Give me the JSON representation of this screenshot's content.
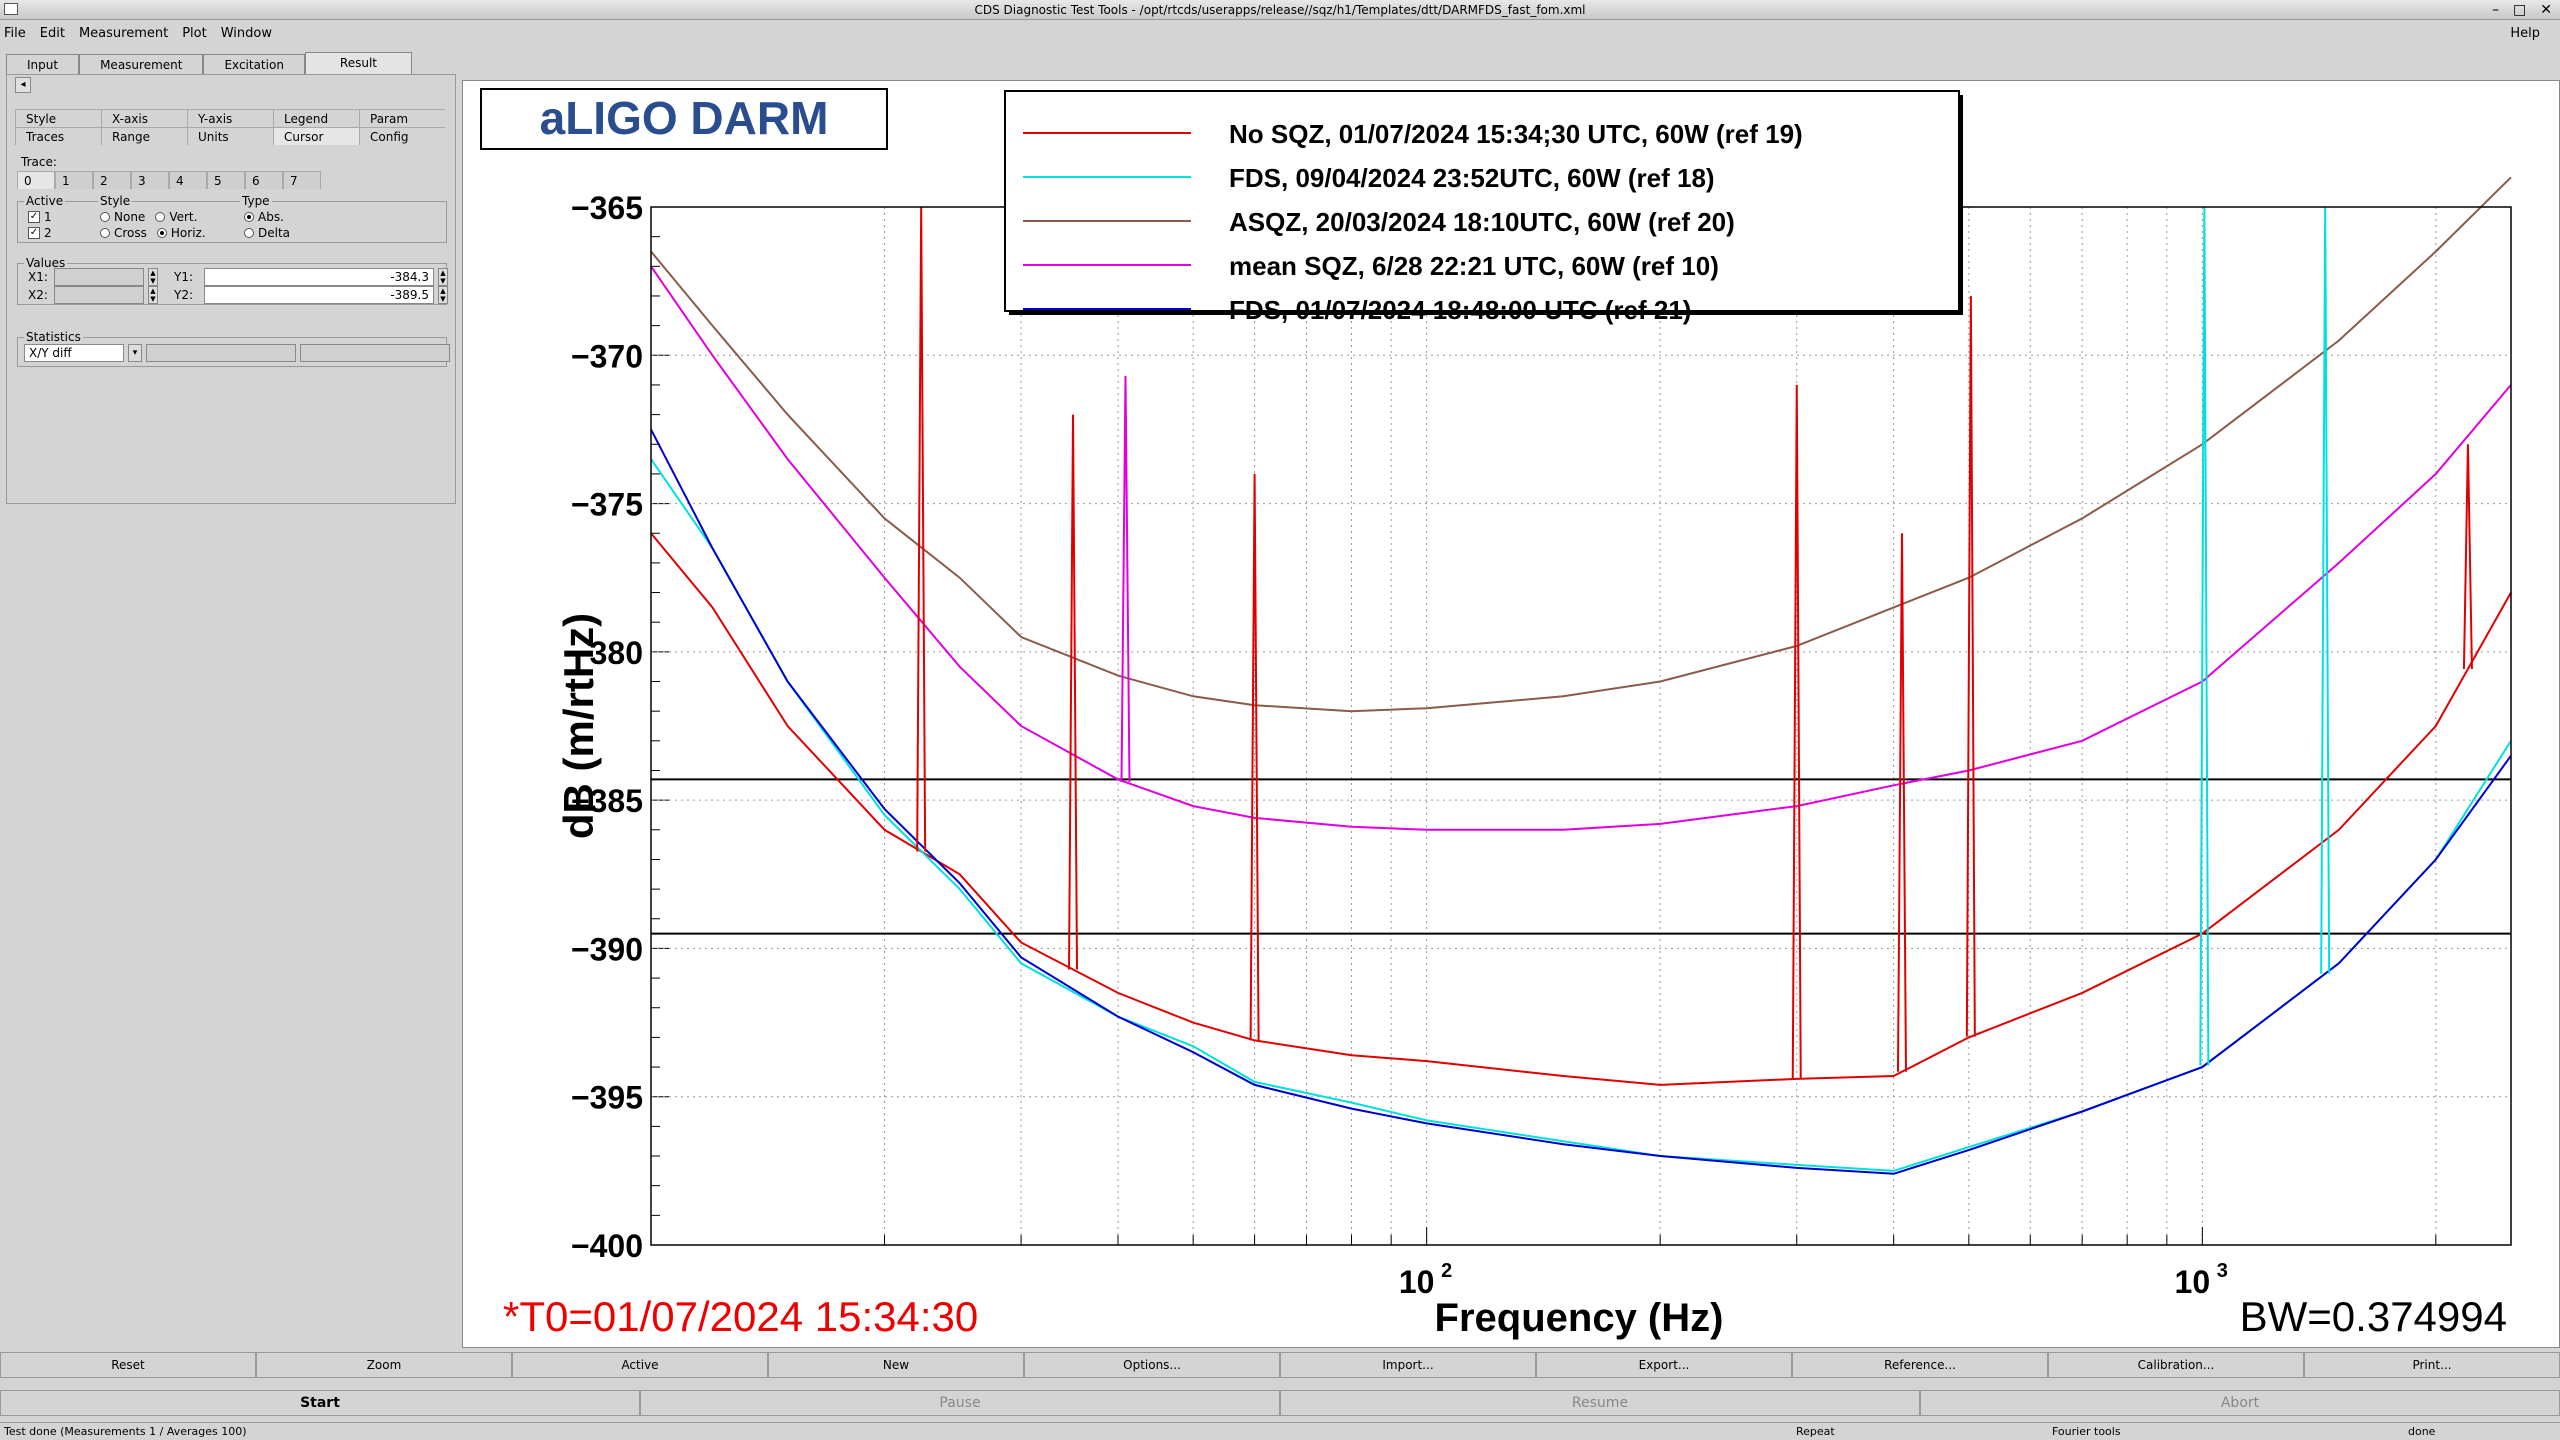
{
  "window": {
    "title": "CDS Diagnostic Test Tools - /opt/rtcds/userapps/release//sqz/h1/Templates/dtt/DARMFDS_fast_fom.xml",
    "controls": [
      "–",
      "□",
      "✕"
    ]
  },
  "menu": {
    "items": [
      "File",
      "Edit",
      "Measurement",
      "Plot",
      "Window"
    ],
    "help": "Help"
  },
  "tabs": [
    "Input",
    "Measurement",
    "Excitation",
    "Result"
  ],
  "panel": {
    "collapse_icon": "◂",
    "subtabs_row1": [
      "Style",
      "X-axis",
      "Y-axis",
      "Legend",
      "Param"
    ],
    "subtabs_row2": [
      "Traces",
      "Range",
      "Units",
      "Cursor",
      "Config"
    ],
    "trace_label": "Trace:",
    "trace_tabs": [
      "0",
      "1",
      "2",
      "3",
      "4",
      "5",
      "6",
      "7"
    ],
    "active_label": "Active",
    "active_1": "1",
    "active_2": "2",
    "style_label": "Style",
    "style_none": "None",
    "style_vert": "Vert.",
    "style_cross": "Cross",
    "style_horiz": "Horiz.",
    "type_label": "Type",
    "type_abs": "Abs.",
    "type_delta": "Delta",
    "values_label": "Values",
    "x1_label": "X1:",
    "x2_label": "X2:",
    "y1_label": "Y1:",
    "y2_label": "Y2:",
    "y1_value": "-384.3",
    "y2_value": "-389.5",
    "statistics_label": "Statistics",
    "statistics_value": "X/Y diff"
  },
  "chart_data": {
    "type": "line",
    "title": "aLIGO DARM",
    "xlabel": "Frequency (Hz)",
    "ylabel": "dB (m/rtHz)",
    "xscale": "log",
    "xlim": [
      10,
      2500
    ],
    "ylim": [
      -400,
      -365
    ],
    "yticks": [
      -365,
      -370,
      -375,
      -380,
      -385,
      -390,
      -395,
      -400
    ],
    "xtick_base": "10",
    "xtick_exp": [
      "2",
      "3"
    ],
    "grid": true,
    "cursors_y": [
      -384.3,
      -389.5
    ],
    "t0_label": "*T0=01/07/2024 15:34:30",
    "bw_label": "BW=0.374994",
    "legend_position": "top-center",
    "series": [
      {
        "name": "No SQZ, 01/07/2024 15:34;30 UTC, 60W (ref 19)",
        "color": "#e00000",
        "x": [
          10,
          12,
          15,
          20,
          25,
          30,
          40,
          50,
          60,
          80,
          100,
          150,
          200,
          300,
          400,
          500,
          700,
          1000,
          1500,
          2000,
          2500
        ],
        "y": [
          -376,
          -378.5,
          -382.5,
          -386,
          -387.5,
          -389.8,
          -391.5,
          -392.5,
          -393.1,
          -393.6,
          -393.8,
          -394.3,
          -394.6,
          -394.4,
          -394.3,
          -393,
          -391.5,
          -389.5,
          -386,
          -382.5,
          -378
        ]
      },
      {
        "name": "FDS, 09/04/2024 23:52UTC, 60W (ref 18)",
        "color": "#00e0e0",
        "x": [
          10,
          12,
          15,
          20,
          25,
          30,
          40,
          50,
          60,
          80,
          100,
          150,
          200,
          300,
          400,
          500,
          700,
          1000,
          1500,
          2000,
          2500
        ],
        "y": [
          -373.5,
          -376.5,
          -381,
          -385.5,
          -388,
          -390.5,
          -392.3,
          -393.3,
          -394.5,
          -395.2,
          -395.8,
          -396.5,
          -397,
          -397.3,
          -397.5,
          -396.7,
          -395.5,
          -394,
          -390.5,
          -387,
          -383
        ]
      },
      {
        "name": "ASQZ, 20/03/2024 18:10UTC, 60W (ref 20)",
        "color": "#8b5a48",
        "x": [
          10,
          12,
          15,
          20,
          25,
          30,
          40,
          50,
          60,
          80,
          100,
          150,
          200,
          300,
          400,
          500,
          700,
          1000,
          1500,
          2000,
          2500
        ],
        "y": [
          -366.5,
          -369,
          -372,
          -375.5,
          -377.5,
          -379.5,
          -380.8,
          -381.5,
          -381.8,
          -382,
          -381.9,
          -381.5,
          -381,
          -379.8,
          -378.5,
          -377.5,
          -375.5,
          -373,
          -369.5,
          -366.5,
          -364
        ]
      },
      {
        "name": "mean SQZ, 6/28 22:21 UTC, 60W (ref 10)",
        "color": "#e000e0",
        "x": [
          10,
          12,
          15,
          20,
          25,
          30,
          40,
          50,
          60,
          80,
          100,
          150,
          200,
          300,
          400,
          500,
          700,
          1000,
          1500,
          2000,
          2500
        ],
        "y": [
          -367,
          -370,
          -373.5,
          -377.5,
          -380.5,
          -382.5,
          -384.3,
          -385.2,
          -385.6,
          -385.9,
          -386,
          -386,
          -385.8,
          -385.2,
          -384.5,
          -384,
          -383,
          -381,
          -377,
          -374,
          -371
        ]
      },
      {
        "name": "FDS, 01/07/2024 18:48:00 UTC (ref 21)",
        "color": "#0000cc",
        "x": [
          10,
          12,
          15,
          20,
          25,
          30,
          40,
          50,
          60,
          80,
          100,
          150,
          200,
          300,
          400,
          500,
          700,
          1000,
          1500,
          2000,
          2500
        ],
        "y": [
          -372.5,
          -376.5,
          -381,
          -385.3,
          -387.8,
          -390.3,
          -392.3,
          -393.5,
          -394.6,
          -395.4,
          -395.9,
          -396.6,
          -397,
          -397.4,
          -397.6,
          -396.8,
          -395.5,
          -394,
          -390.5,
          -387,
          -383.5
        ]
      }
    ],
    "spikes": [
      {
        "x": 22.3,
        "y": -365,
        "series": 0
      },
      {
        "x": 35,
        "y": -372,
        "series": 0
      },
      {
        "x": 40.9,
        "y": -370.7,
        "series": 3
      },
      {
        "x": 60,
        "y": -374,
        "series": 0
      },
      {
        "x": 300,
        "y": -371,
        "series": 0
      },
      {
        "x": 410,
        "y": -376,
        "series": 0
      },
      {
        "x": 503,
        "y": -368,
        "series": 0
      },
      {
        "x": 1006,
        "y": -365,
        "series": 1
      },
      {
        "x": 1440,
        "y": -365,
        "series": 1
      },
      {
        "x": 2200,
        "y": -373,
        "series": 0
      }
    ]
  },
  "bottom_buttons": [
    "Reset",
    "Zoom",
    "Active",
    "New",
    "Options...",
    "Import...",
    "Export...",
    "Reference...",
    "Calibration...",
    "Print..."
  ],
  "action_buttons": [
    "Start",
    "Pause",
    "Resume",
    "Abort"
  ],
  "status": {
    "left": "Test done (Measurements 1 / Averages 100)",
    "repeat": "Repeat",
    "tools": "Fourier tools",
    "state": "done"
  }
}
